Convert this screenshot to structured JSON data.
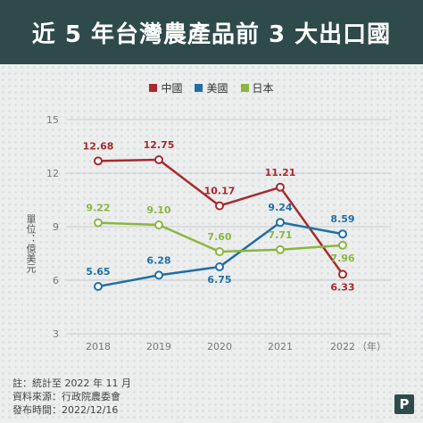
{
  "header": {
    "title": "近 5 年台灣農產品前 3 大出口國"
  },
  "notes": {
    "line1": "註：統計至 2022 年 11 月",
    "line2": "資料來源：行政院農委會",
    "line3": "發布時間：2022/12/16"
  },
  "chart_data": {
    "type": "line",
    "ylabel": "單位：億美元",
    "x_unit_label": "（年）",
    "categories": [
      "2018",
      "2019",
      "2020",
      "2021",
      "2022"
    ],
    "ylim": [
      3,
      15
    ],
    "yticks": [
      "3",
      "6",
      "9",
      "12",
      "15"
    ],
    "grid": true,
    "legend_position": "top",
    "series": [
      {
        "name": "中國",
        "color": "#a8292f",
        "values": [
          12.68,
          12.75,
          10.17,
          11.21,
          6.33
        ],
        "labels": [
          "12.68",
          "12.75",
          "10.17",
          "11.21",
          "6.33"
        ]
      },
      {
        "name": "美國",
        "color": "#1f6fa3",
        "values": [
          5.65,
          6.28,
          6.75,
          9.24,
          8.59
        ],
        "labels": [
          "5.65",
          "6.28",
          "6.75",
          "9.24",
          "8.59"
        ]
      },
      {
        "name": "日本",
        "color": "#8ab63f",
        "values": [
          9.22,
          9.1,
          7.6,
          7.71,
          7.96
        ],
        "labels": [
          "9.22",
          "9.10",
          "7.60",
          "7.71",
          "7.96"
        ]
      }
    ]
  }
}
